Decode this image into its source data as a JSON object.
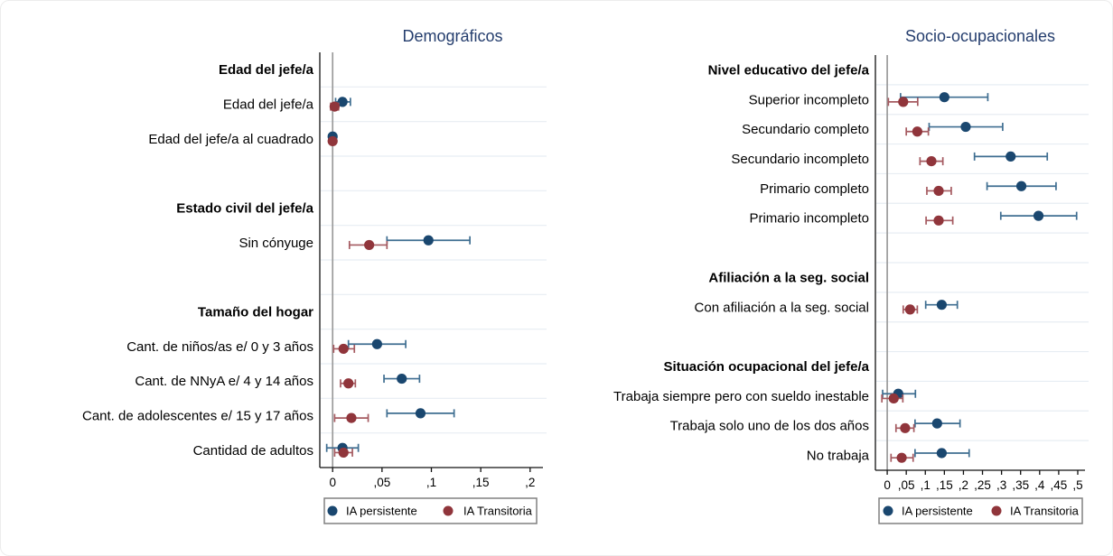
{
  "legend": {
    "items": [
      {
        "name": "persistente",
        "label": "IA persistente",
        "color": "#1a476f"
      },
      {
        "name": "transitoria",
        "label": "IA Transitoria",
        "color": "#90353b"
      }
    ]
  },
  "colors": {
    "persistente_marker": "#1a476f",
    "persistente_line": "#3f6e91",
    "transitoria_marker": "#90353b",
    "transitoria_line": "#a55a60",
    "grid": "#e7edf3",
    "zero_line": "#9b9b9b",
    "axis": "#111111",
    "title": "#253e6e",
    "text": "#000000",
    "legend_border": "#808080"
  },
  "chart_data": [
    {
      "type": "scatter",
      "subtype": "coefficient-forest-plot",
      "title": "Demográficos",
      "xlabel": "",
      "ylabel": "",
      "xlim": [
        -0.013,
        0.213
      ],
      "x_ticks": [
        0,
        0.05,
        0.1,
        0.15,
        0.2
      ],
      "x_tick_labels": [
        "0",
        ",05",
        ",1",
        ",15",
        ",2"
      ],
      "grid": "horizontal-row-separators",
      "zero_line": 0,
      "rows": [
        {
          "label": "Edad del jefe/a",
          "header": true
        },
        {
          "label": "Edad del jefe/a",
          "persistente": {
            "est": 0.01,
            "lo": 0.003,
            "hi": 0.018
          },
          "transitoria": {
            "est": 0.002,
            "lo": -0.002,
            "hi": 0.006
          }
        },
        {
          "label": "Edad del jefe/a al cuadrado",
          "persistente": {
            "est": 0.0,
            "lo": -0.001,
            "hi": 0.001
          },
          "transitoria": {
            "est": 0.0,
            "lo": -0.001,
            "hi": 0.001
          }
        },
        {
          "label": ""
        },
        {
          "label": "Estado civil del jefe/a",
          "header": true
        },
        {
          "label": "Sin cónyuge",
          "persistente": {
            "est": 0.097,
            "lo": 0.055,
            "hi": 0.139
          },
          "transitoria": {
            "est": 0.037,
            "lo": 0.017,
            "hi": 0.055
          }
        },
        {
          "label": ""
        },
        {
          "label": "Tamaño del hogar",
          "header": true
        },
        {
          "label": "Cant. de niños/as e/ 0 y 3 años",
          "persistente": {
            "est": 0.045,
            "lo": 0.016,
            "hi": 0.074
          },
          "transitoria": {
            "est": 0.011,
            "lo": 0.001,
            "hi": 0.022
          }
        },
        {
          "label": "Cant. de NNyA e/ 4 y 14 años",
          "persistente": {
            "est": 0.07,
            "lo": 0.052,
            "hi": 0.088
          },
          "transitoria": {
            "est": 0.016,
            "lo": 0.008,
            "hi": 0.023
          }
        },
        {
          "label": "Cant. de adolescentes e/ 15 y 17 años",
          "persistente": {
            "est": 0.089,
            "lo": 0.055,
            "hi": 0.123
          },
          "transitoria": {
            "est": 0.019,
            "lo": 0.002,
            "hi": 0.036
          }
        },
        {
          "label": "Cantidad de adultos",
          "persistente": {
            "est": 0.01,
            "lo": -0.006,
            "hi": 0.026
          },
          "transitoria": {
            "est": 0.011,
            "lo": 0.002,
            "hi": 0.02
          }
        }
      ]
    },
    {
      "type": "scatter",
      "subtype": "coefficient-forest-plot",
      "title": "Socio-ocupacionales",
      "xlabel": "",
      "ylabel": "",
      "xlim": [
        -0.031,
        0.519
      ],
      "x_ticks": [
        0,
        0.05,
        0.1,
        0.15,
        0.2,
        0.25,
        0.3,
        0.35,
        0.4,
        0.45,
        0.5
      ],
      "x_tick_labels": [
        "0",
        ",05",
        ",1",
        ",15",
        ",2",
        ",25",
        ",3",
        ",35",
        ",4",
        ",45",
        ",5"
      ],
      "grid": "horizontal-row-separators",
      "zero_line": 0,
      "rows": [
        {
          "label": "Nivel educativo del jefe/a",
          "header": true
        },
        {
          "label": "Superior incompleto",
          "persistente": {
            "est": 0.15,
            "lo": 0.035,
            "hi": 0.264
          },
          "transitoria": {
            "est": 0.042,
            "lo": 0.003,
            "hi": 0.08
          }
        },
        {
          "label": "Secundario completo",
          "persistente": {
            "est": 0.206,
            "lo": 0.11,
            "hi": 0.303
          },
          "transitoria": {
            "est": 0.079,
            "lo": 0.05,
            "hi": 0.108
          }
        },
        {
          "label": "Secundario incompleto",
          "persistente": {
            "est": 0.324,
            "lo": 0.229,
            "hi": 0.42
          },
          "transitoria": {
            "est": 0.116,
            "lo": 0.086,
            "hi": 0.146
          }
        },
        {
          "label": "Primario completo",
          "persistente": {
            "est": 0.352,
            "lo": 0.262,
            "hi": 0.443
          },
          "transitoria": {
            "est": 0.135,
            "lo": 0.104,
            "hi": 0.168
          }
        },
        {
          "label": "Primario incompleto",
          "persistente": {
            "est": 0.397,
            "lo": 0.298,
            "hi": 0.497
          },
          "transitoria": {
            "est": 0.135,
            "lo": 0.102,
            "hi": 0.172
          }
        },
        {
          "label": ""
        },
        {
          "label": "Afiliación a la seg. social",
          "header": true
        },
        {
          "label": "Con afiliación a la seg. social",
          "persistente": {
            "est": 0.143,
            "lo": 0.101,
            "hi": 0.184
          },
          "transitoria": {
            "est": 0.06,
            "lo": 0.042,
            "hi": 0.079
          }
        },
        {
          "label": ""
        },
        {
          "label": "Situación ocupacional del jefe/a",
          "header": true
        },
        {
          "label": "Trabaja siempre pero con sueldo inestable",
          "persistente": {
            "est": 0.029,
            "lo": -0.012,
            "hi": 0.074
          },
          "transitoria": {
            "est": 0.017,
            "lo": -0.014,
            "hi": 0.041
          }
        },
        {
          "label": "Trabaja solo uno de los dos años",
          "persistente": {
            "est": 0.131,
            "lo": 0.073,
            "hi": 0.191
          },
          "transitoria": {
            "est": 0.047,
            "lo": 0.023,
            "hi": 0.07
          }
        },
        {
          "label": "No trabaja",
          "persistente": {
            "est": 0.143,
            "lo": 0.073,
            "hi": 0.215
          },
          "transitoria": {
            "est": 0.038,
            "lo": 0.01,
            "hi": 0.068
          }
        }
      ]
    }
  ]
}
